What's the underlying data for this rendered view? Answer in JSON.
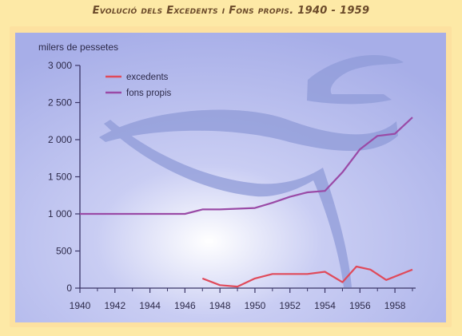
{
  "chart_data": {
    "type": "line",
    "title": "Evolució dels Excedents i Fons propis. 1940 - 1959",
    "ylabel": "milers de pessetes",
    "xlabel": "",
    "xlim": [
      1940,
      1959
    ],
    "ylim": [
      0,
      3000
    ],
    "x_ticks": [
      "1940",
      "1942",
      "1944",
      "1946",
      "1948",
      "1950",
      "1952",
      "1954",
      "1956",
      "1958"
    ],
    "y_ticks": [
      "0",
      "500",
      "1 000",
      "1 500",
      "2 000",
      "2 500",
      "3 000"
    ],
    "legend_position": "top-left",
    "series": [
      {
        "name": "excedents",
        "color": "#e04a5a",
        "x": [
          1947,
          1948,
          1949,
          1950,
          1951,
          1952,
          1953,
          1954,
          1955,
          1955.8,
          1956.6,
          1957.5,
          1959
        ],
        "y": [
          130,
          40,
          20,
          130,
          190,
          190,
          190,
          220,
          80,
          290,
          250,
          110,
          250
        ]
      },
      {
        "name": "fons propis",
        "color": "#9a4aa6",
        "x": [
          1940,
          1946,
          1947,
          1948,
          1949,
          1950,
          1951,
          1952,
          1953,
          1954,
          1955,
          1956,
          1957,
          1958,
          1959
        ],
        "y": [
          1000,
          1000,
          1060,
          1060,
          1070,
          1080,
          1150,
          1230,
          1290,
          1310,
          1560,
          1870,
          2050,
          2080,
          2300
        ]
      }
    ]
  }
}
